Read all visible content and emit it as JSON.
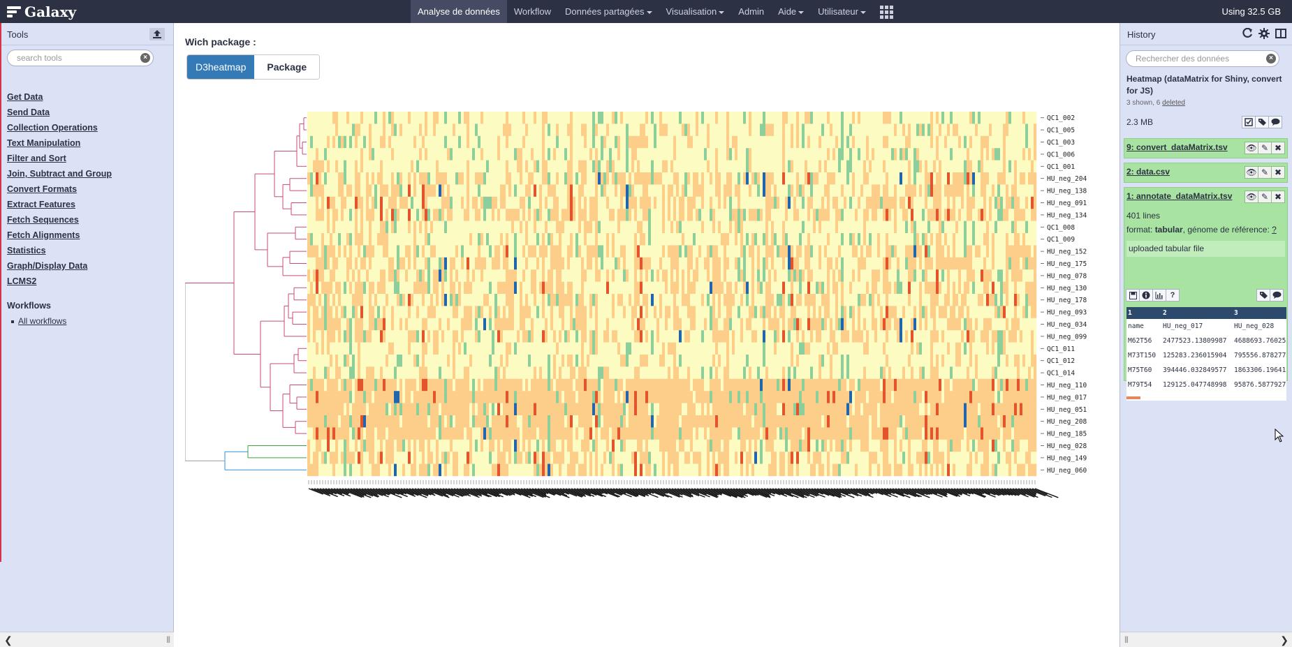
{
  "masthead": {
    "brand": "Galaxy",
    "nav": [
      {
        "label": "Analyse de données",
        "active": true,
        "caret": false
      },
      {
        "label": "Workflow",
        "active": false,
        "caret": false
      },
      {
        "label": "Données partagées",
        "active": false,
        "caret": true
      },
      {
        "label": "Visualisation",
        "active": false,
        "caret": true
      },
      {
        "label": "Admin",
        "active": false,
        "caret": false
      },
      {
        "label": "Aide",
        "active": false,
        "caret": true
      },
      {
        "label": "Utilisateur",
        "active": false,
        "caret": true
      }
    ],
    "quota": "Using 32.5 GB"
  },
  "tools": {
    "title": "Tools",
    "search_placeholder": "search tools",
    "sections": [
      "Get Data",
      "Send Data",
      "Collection Operations",
      "Text Manipulation",
      "Filter and Sort",
      "Join, Subtract and Group",
      "Convert Formats",
      "Extract Features",
      "Fetch Sequences",
      "Fetch Alignments",
      "Statistics",
      "Graph/Display Data",
      "LCMS2"
    ],
    "workflows_title": "Workflows",
    "all_workflows": "All workflows"
  },
  "center": {
    "label": "Wich package :",
    "tabs": [
      {
        "label": "D3heatmap",
        "active": true
      },
      {
        "label": "Package",
        "active": false
      }
    ]
  },
  "heatmap": {
    "rows": [
      "QC1_002",
      "QC1_005",
      "QC1_003",
      "QC1_006",
      "QC1_001",
      "HU_neg_204",
      "HU_neg_138",
      "HU_neg_091",
      "HU_neg_134",
      "QC1_008",
      "QC1_009",
      "HU_neg_152",
      "HU_neg_175",
      "HU_neg_078",
      "HU_neg_130",
      "HU_neg_178",
      "HU_neg_093",
      "HU_neg_034",
      "HU_neg_099",
      "QC1_011",
      "QC1_012",
      "QC1_014",
      "HU_neg_110",
      "HU_neg_017",
      "HU_neg_051",
      "HU_neg_208",
      "HU_neg_185",
      "HU_neg_028",
      "HU_neg_149",
      "HU_neg_060"
    ],
    "colors": {
      "low": "#2166ac",
      "mid_low": "#8ccf9a",
      "mid": "#fbfbc2",
      "mid_high": "#fdce8a",
      "high": "#e4542c",
      "dendro_main": "#c94a7a",
      "dendro_green": "#3aa53a",
      "dendro_blue": "#2b8fe0",
      "dendro_gray": "#999999"
    }
  },
  "history": {
    "title": "History",
    "search_placeholder": "Rechercher des données",
    "name": "Heatmap (dataMatrix for Shiny, convert for JS)",
    "shown": "3 shown, 6",
    "deleted": "deleted",
    "size": "2.3 MB",
    "datasets": [
      {
        "title": "9: convert_dataMatrix.tsv"
      },
      {
        "title": "2: data.csv"
      },
      {
        "title": "1: annotate_dataMatrix.tsv"
      }
    ],
    "expanded": {
      "lines": "401 lines",
      "format_label": "format:",
      "format_value": "tabular",
      "genome_label": ", génome de référence:",
      "genome_value": "?",
      "info": "uploaded tabular file",
      "peek_header": [
        "1",
        "2",
        "3"
      ],
      "peek_rows": [
        [
          "name",
          "HU_neg_017",
          "HU_neg_028"
        ],
        [
          "M62T56",
          "2477523.13809987",
          "4688693.76025"
        ],
        [
          "M73T150",
          "125283.236015904",
          "795556.878277"
        ],
        [
          "M75T60",
          "394446.032849577",
          "1863306.19641"
        ],
        [
          "M79T54",
          "129125.047748998",
          "95876.5877927"
        ]
      ]
    }
  }
}
